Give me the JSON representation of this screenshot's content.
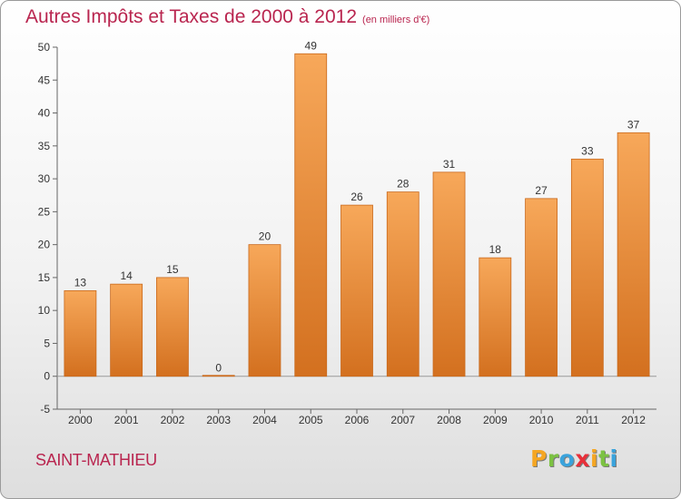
{
  "chart_data": {
    "type": "bar",
    "title": "Autres Impôts et Taxes de 2000 à 2012",
    "subtitle": "(en milliers d'€)",
    "categories": [
      "2000",
      "2001",
      "2002",
      "2003",
      "2004",
      "2005",
      "2006",
      "2007",
      "2008",
      "2009",
      "2010",
      "2011",
      "2012"
    ],
    "values": [
      13,
      14,
      15,
      0,
      20,
      49,
      26,
      28,
      31,
      18,
      27,
      33,
      37
    ],
    "ylim": [
      -5,
      50
    ],
    "yticks": [
      -5,
      0,
      5,
      10,
      15,
      20,
      25,
      30,
      35,
      40,
      45,
      50
    ],
    "grid": false,
    "bar_color": "#f0913a"
  },
  "commune": "SAINT-MATHIEU",
  "logo": {
    "letters": [
      "P",
      "r",
      "o",
      "x",
      "i",
      "t",
      "i"
    ],
    "colors": [
      "#f5a623",
      "#7cc242",
      "#3aa3dc",
      "#e8303a",
      "#f5a623",
      "#7cc242",
      "#3aa3dc"
    ]
  },
  "colors": {
    "title": "#b9254f",
    "axis": "#555555"
  }
}
